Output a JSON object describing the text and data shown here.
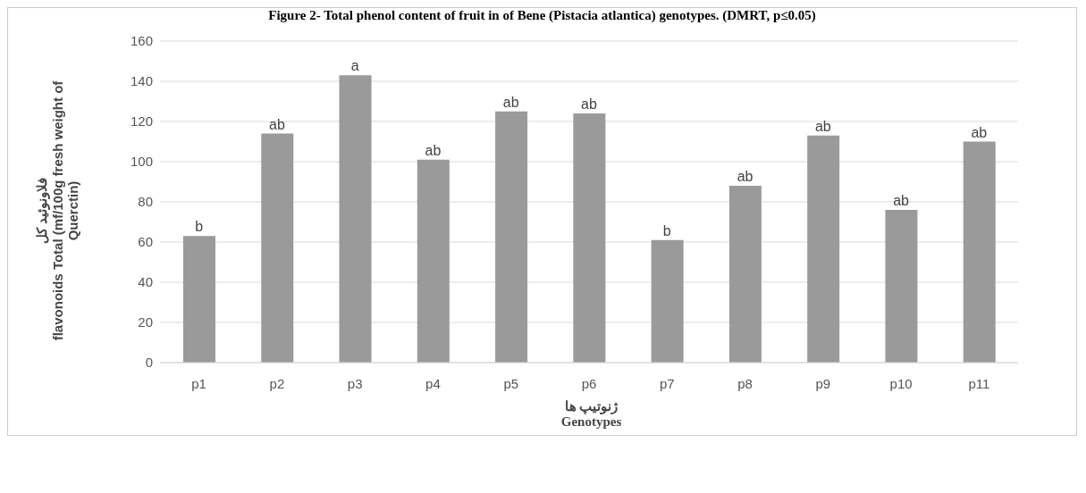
{
  "chart_data": {
    "type": "bar",
    "title": "Figure 2- Total phenol content of fruit in of Bene (Pistacia atlantica) genotypes. (DMRT, p≤0.05)",
    "xlabel": "ژنوتیپ ها\nGenotypes",
    "ylabel": "فلاونوئید کل\nflavonoids Total (mf/100g fresh weight of\nQuerctin)",
    "categories": [
      "p1",
      "p2",
      "p3",
      "p4",
      "p5",
      "p6",
      "p7",
      "p8",
      "p9",
      "p10",
      "p11"
    ],
    "values": [
      63,
      114,
      143,
      101,
      125,
      124,
      61,
      88,
      113,
      76,
      110
    ],
    "color": "#9a9a9a",
    "ylim": [
      0,
      160
    ],
    "yticks": [
      0,
      20,
      40,
      60,
      80,
      100,
      120,
      140,
      160
    ],
    "grid": "y",
    "annotations": [
      {
        "text": "b",
        "x": "p1",
        "y": 63
      },
      {
        "text": "ab",
        "x": "p2",
        "y": 114
      },
      {
        "text": "a",
        "x": "p3",
        "y": 143
      },
      {
        "text": "ab",
        "x": "p4",
        "y": 101
      },
      {
        "text": "ab",
        "x": "p5",
        "y": 125
      },
      {
        "text": "ab",
        "x": "p6",
        "y": 124
      },
      {
        "text": "b",
        "x": "p7",
        "y": 61
      },
      {
        "text": "ab",
        "x": "p8",
        "y": 88
      },
      {
        "text": "ab",
        "x": "p9",
        "y": 113
      },
      {
        "text": "ab",
        "x": "p10",
        "y": 76
      },
      {
        "text": "ab",
        "x": "p11",
        "y": 110
      }
    ]
  }
}
